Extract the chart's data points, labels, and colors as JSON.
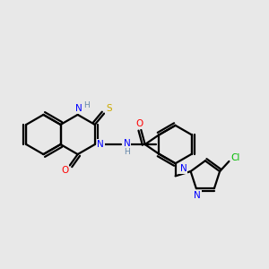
{
  "bg_color": "#e8e8e8",
  "atom_colors": {
    "N": "#0000ff",
    "O": "#ff0000",
    "S": "#ccaa00",
    "Cl": "#00bb00",
    "H": "#6688aa"
  },
  "bond_lw": 1.6,
  "font_size": 7.5
}
